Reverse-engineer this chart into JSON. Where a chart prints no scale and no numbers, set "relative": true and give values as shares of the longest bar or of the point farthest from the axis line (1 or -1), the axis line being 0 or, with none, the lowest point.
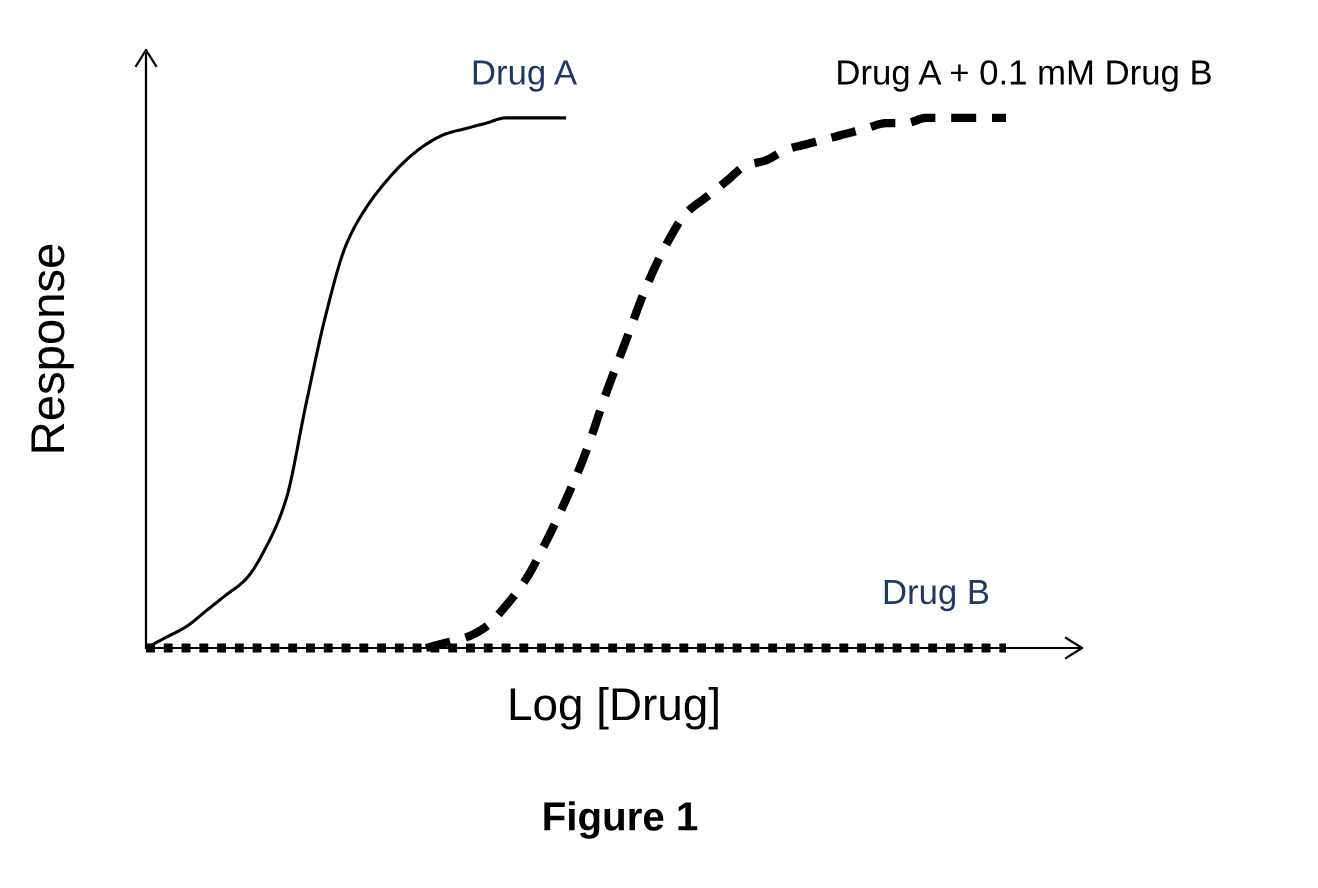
{
  "chart_data": {
    "type": "line",
    "xlabel": "Log [Drug]",
    "ylabel": "Response",
    "annotations": [
      "Figure 1"
    ],
    "relative": true,
    "categories": [
      null,
      null,
      null,
      null,
      null,
      null,
      null,
      null,
      null,
      null,
      null,
      null,
      null,
      null,
      null,
      null,
      null,
      null,
      null,
      null,
      null,
      null,
      null,
      null,
      null,
      null,
      null,
      null,
      null,
      null,
      null,
      null,
      null,
      null,
      null,
      null,
      null,
      null,
      null,
      null,
      null,
      null,
      null,
      null
    ],
    "series": [
      {
        "name": "Drug A",
        "color": "#000000",
        "line_style": "solid",
        "values": [
          0,
          0.02,
          0.04,
          0.07,
          0.1,
          0.13,
          0.19,
          0.28,
          0.46,
          0.63,
          0.76,
          0.83,
          0.88,
          0.92,
          0.95,
          0.97,
          0.98,
          0.99,
          1,
          1,
          1,
          1,
          null,
          null,
          null,
          null,
          null,
          null,
          null,
          null,
          null,
          null,
          null,
          null,
          null,
          null,
          null,
          null,
          null,
          null,
          null,
          null,
          null,
          null
        ]
      },
      {
        "name": "Drug A + 0.1 mM Drug B",
        "color": "#000000",
        "line_style": "dashed",
        "values": [
          null,
          null,
          null,
          null,
          null,
          null,
          null,
          null,
          null,
          null,
          null,
          null,
          null,
          null,
          0,
          0.01,
          0.02,
          0.04,
          0.08,
          0.13,
          0.2,
          0.28,
          0.37,
          0.48,
          0.58,
          0.68,
          0.76,
          0.82,
          0.85,
          0.88,
          0.91,
          0.92,
          0.94,
          0.95,
          0.96,
          0.97,
          0.98,
          0.99,
          0.99,
          1,
          1,
          1,
          1,
          1
        ]
      },
      {
        "name": "Drug B",
        "color": "#000000",
        "line_style": "dotted",
        "values": [
          0,
          0,
          0,
          0,
          0,
          0,
          0,
          0,
          0,
          0,
          0,
          0,
          0,
          0,
          0,
          0,
          0,
          0,
          0,
          0,
          0,
          0,
          0,
          0,
          0,
          0,
          0,
          0,
          0,
          0,
          0,
          0,
          0,
          0,
          0,
          0,
          0,
          0,
          0,
          0,
          0,
          0,
          0,
          0
        ]
      }
    ]
  }
}
